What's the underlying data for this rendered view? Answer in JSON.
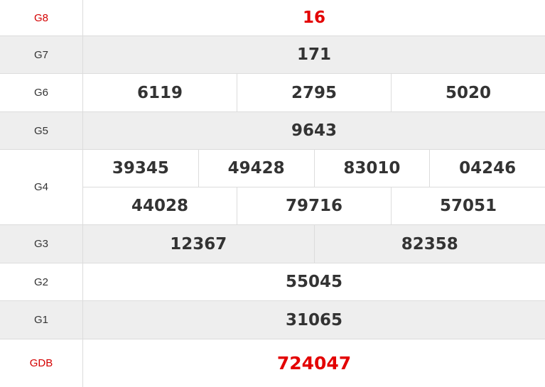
{
  "colors": {
    "special": "#e30000",
    "text": "#333333",
    "alt_row": "#eeeeee"
  },
  "prizes": [
    {
      "label": "G8",
      "numbers": [
        "16"
      ]
    },
    {
      "label": "G7",
      "numbers": [
        "171"
      ]
    },
    {
      "label": "G6",
      "numbers": [
        "6119",
        "2795",
        "5020"
      ]
    },
    {
      "label": "G5",
      "numbers": [
        "9643"
      ]
    },
    {
      "label": "G4",
      "numbers": [
        "39345",
        "49428",
        "83010",
        "04246",
        "44028",
        "79716",
        "57051"
      ]
    },
    {
      "label": "G3",
      "numbers": [
        "12367",
        "82358"
      ]
    },
    {
      "label": "G2",
      "numbers": [
        "55045"
      ]
    },
    {
      "label": "G1",
      "numbers": [
        "31065"
      ]
    },
    {
      "label": "GDB",
      "numbers": [
        "724047"
      ]
    }
  ]
}
